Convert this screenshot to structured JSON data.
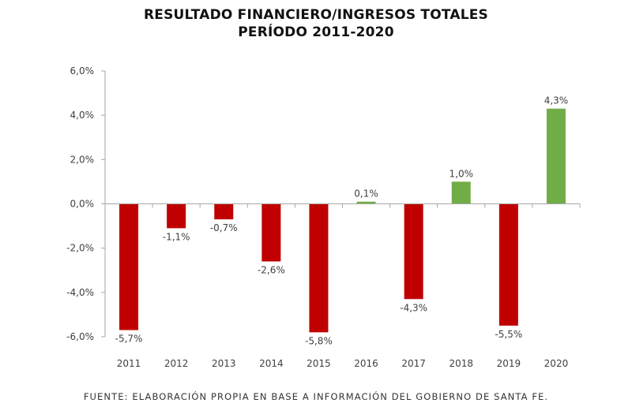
{
  "chart_data": {
    "type": "bar",
    "title": "RESULTADO FINANCIERO/INGRESOS TOTALES",
    "subtitle": "PERÍODO 2011-2020",
    "xlabel": "",
    "ylabel": "",
    "categories": [
      "2011",
      "2012",
      "2013",
      "2014",
      "2015",
      "2016",
      "2017",
      "2018",
      "2019",
      "2020"
    ],
    "values": [
      -5.7,
      -1.1,
      -0.7,
      -2.6,
      -5.8,
      0.1,
      -4.3,
      1.0,
      -5.5,
      4.3
    ],
    "data_labels": [
      "-5,7%",
      "-1,1%",
      "-0,7%",
      "-2,6%",
      "-5,8%",
      "0,1%",
      "-4,3%",
      "1,0%",
      "-5,5%",
      "4,3%"
    ],
    "ylim": [
      -6,
      6
    ],
    "yticks": [
      6,
      4,
      2,
      0,
      -2,
      -4,
      -6
    ],
    "ytick_labels": [
      "6,0%",
      "4,0%",
      "2,0%",
      "0,0%",
      "-2,0%",
      "-4,0%",
      "-6,0%"
    ],
    "grid": false,
    "legend": "none",
    "colors": {
      "negative": "#c00000",
      "positive": "#70ad47",
      "axis": "#a6a6a6"
    },
    "source": "FUENTE: ELABORACIÓN PROPIA EN BASE A INFORMACIÓN DEL GOBIERNO DE SANTA FE."
  }
}
